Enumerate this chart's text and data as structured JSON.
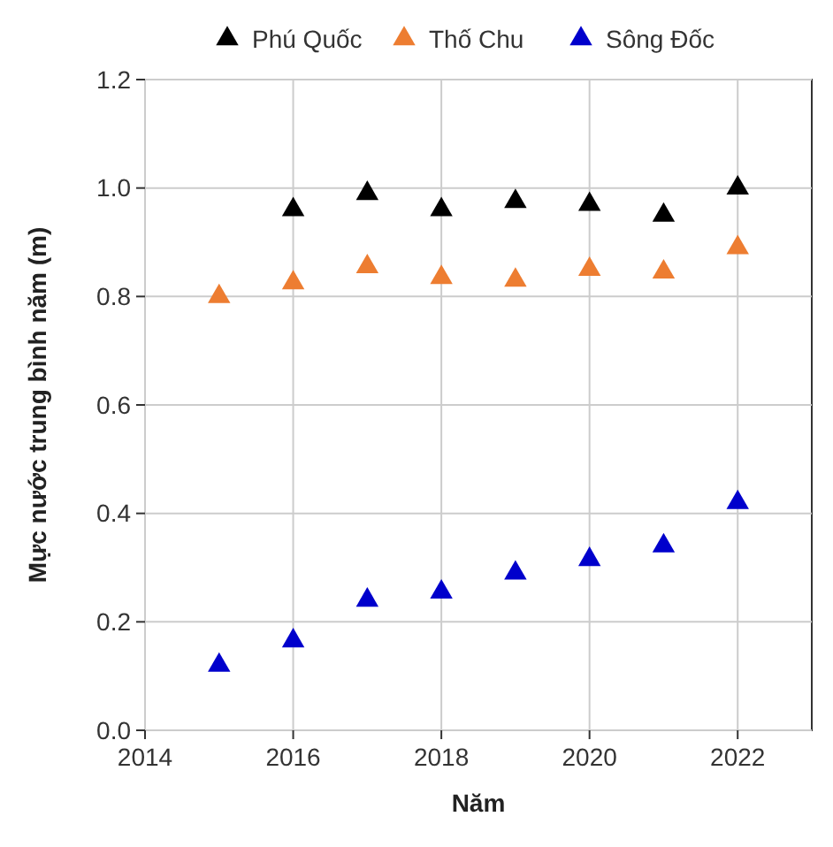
{
  "chart_data": {
    "type": "scatter",
    "xlabel": "Năm",
    "ylabel": "Mực nước trung bình năm (m)",
    "xlim": [
      2014,
      2023
    ],
    "xticks": [
      2014,
      2016,
      2018,
      2020,
      2022
    ],
    "ylim": [
      0,
      1.2
    ],
    "yticks": [
      {
        "value": 0,
        "label": "0.0"
      },
      {
        "value": 0.2,
        "label": "0.2"
      },
      {
        "value": 0.4,
        "label": "0.4"
      },
      {
        "value": 0.6,
        "label": "0.6"
      },
      {
        "value": 0.8,
        "label": "0.8"
      },
      {
        "value": 1,
        "label": "1.0"
      },
      {
        "value": 1.2,
        "label": "1.2"
      }
    ],
    "grid": true,
    "legend": "top",
    "marker": "triangle",
    "series": [
      {
        "name": "Phú Quốc",
        "color": "#000000",
        "x": [
          2016,
          2017,
          2018,
          2019,
          2020,
          2021,
          2022
        ],
        "values": [
          0.96,
          0.99,
          0.96,
          0.975,
          0.97,
          0.95,
          1.0
        ]
      },
      {
        "name": "Thố Chu",
        "color": "#ed7d31",
        "x": [
          2015,
          2016,
          2017,
          2018,
          2019,
          2020,
          2021,
          2022
        ],
        "values": [
          0.8,
          0.825,
          0.855,
          0.835,
          0.83,
          0.85,
          0.845,
          0.89
        ]
      },
      {
        "name": "Sông Đốc",
        "color": "#0000cc",
        "x": [
          2015,
          2016,
          2017,
          2018,
          2019,
          2020,
          2021,
          2022
        ],
        "values": [
          0.12,
          0.165,
          0.24,
          0.255,
          0.29,
          0.315,
          0.34,
          0.42
        ]
      }
    ]
  }
}
